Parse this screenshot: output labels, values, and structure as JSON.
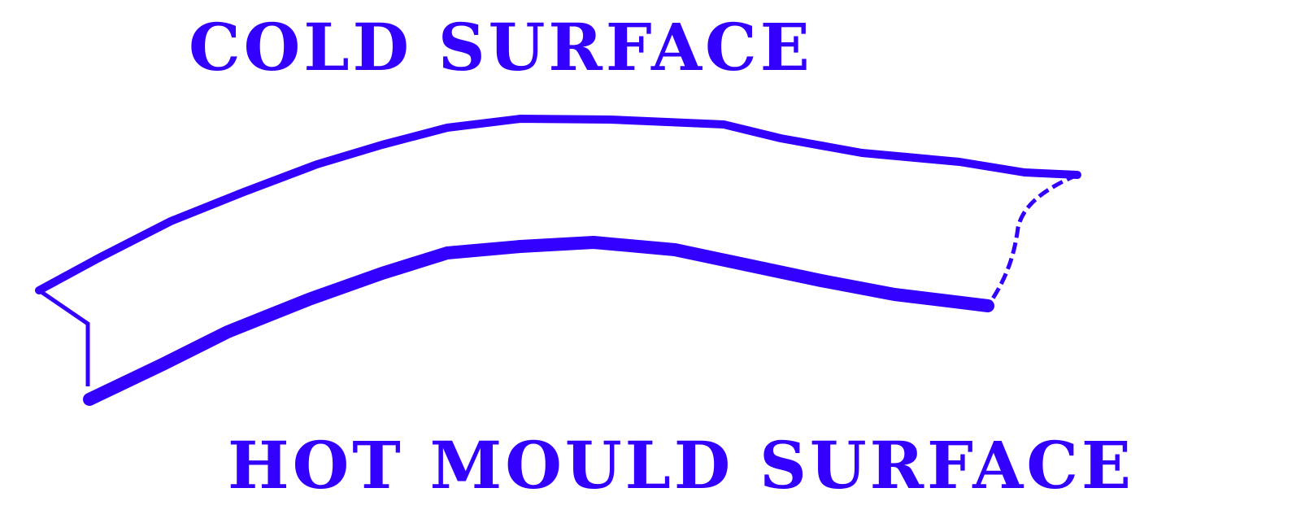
{
  "diagram": {
    "cold_surface_label": "COLD SURFACE",
    "hot_surface_label": "HOT MOULD SURFACE",
    "ink_color": "#3300ff",
    "background_color": "#ffffff"
  }
}
